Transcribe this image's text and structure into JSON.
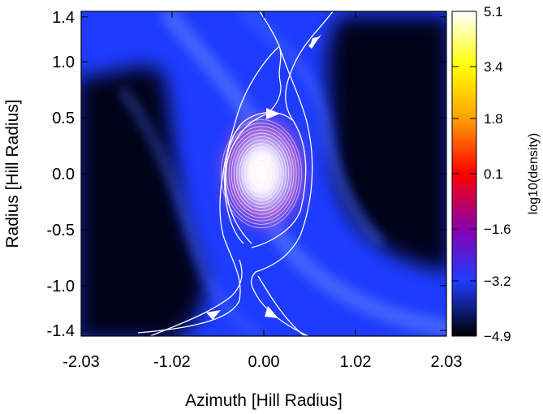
{
  "chart_data": {
    "type": "heatmap",
    "title": "",
    "xlabel": "Azimuth [Hill Radius]",
    "ylabel": "Radius [Hill Radius]",
    "xlim": [
      -2.03,
      2.03
    ],
    "ylim": [
      -1.45,
      1.45
    ],
    "x_ticks": [
      -2.03,
      -1.02,
      0.0,
      1.02,
      2.03
    ],
    "x_tick_labels": [
      "-2.03",
      "-1.02",
      "0.00",
      "1.02",
      "2.03"
    ],
    "y_ticks": [
      1.4,
      1.0,
      0.5,
      0.0,
      -0.5,
      -1.0,
      -1.4
    ],
    "y_tick_labels": [
      "1.4",
      "1.0",
      "0.5",
      "0.0",
      "-0.5",
      "-1.0",
      "-1.4"
    ],
    "colorbar": {
      "label": "log10(density)",
      "range": [
        -4.9,
        5.1
      ],
      "ticks": [
        5.1,
        3.4,
        1.8,
        0.1,
        -1.6,
        -3.2,
        -4.9
      ],
      "tick_labels": [
        "5.1",
        "3.4",
        "1.8",
        "0.1",
        "−1.6",
        "−3.2",
        "−4.9"
      ],
      "colormap": [
        {
          "v": -4.9,
          "color": "#000000"
        },
        {
          "v": -3.2,
          "color": "#1e3cff"
        },
        {
          "v": -1.6,
          "color": "#8a00b0"
        },
        {
          "v": 0.1,
          "color": "#ff0000"
        },
        {
          "v": 1.8,
          "color": "#ffa000"
        },
        {
          "v": 3.4,
          "color": "#ffff00"
        },
        {
          "v": 5.1,
          "color": "#ffffff"
        }
      ]
    },
    "background_color": "#1e3cff",
    "density_peak_location": [
      0.0,
      0.0
    ],
    "streamline_color": "#ffffff",
    "grid": false
  }
}
